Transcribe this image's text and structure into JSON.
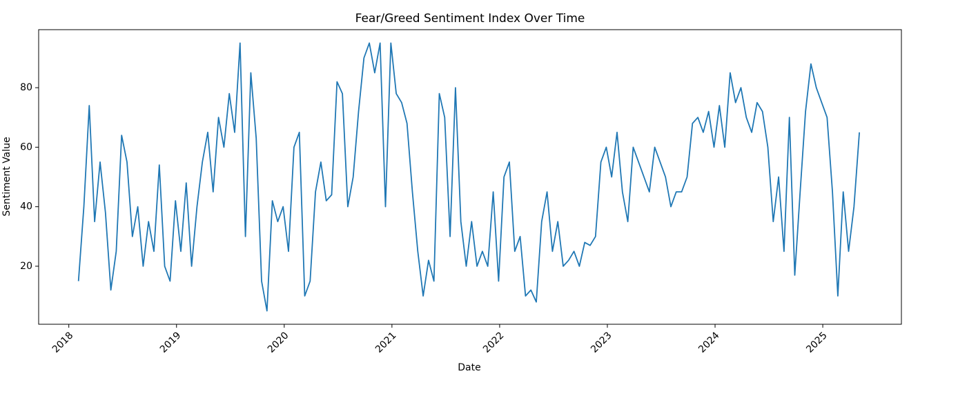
{
  "chart_data": {
    "type": "line",
    "title": "Fear/Greed Sentiment Index Over Time",
    "x_label": "Date",
    "y_label": "Sentiment Value",
    "color": "#1f77b4",
    "xlim": [
      2017.72,
      2025.73
    ],
    "xticks": [
      2018,
      2019,
      2020,
      2021,
      2022,
      2023,
      2024,
      2025
    ],
    "ylim": [
      0.5,
      99.5
    ],
    "yticks": [
      20,
      40,
      60,
      80
    ],
    "grid": false,
    "x": [
      2018.09,
      2018.14,
      2018.19,
      2018.24,
      2018.29,
      2018.34,
      2018.39,
      2018.44,
      2018.49,
      2018.54,
      2018.59,
      2018.64,
      2018.69,
      2018.74,
      2018.79,
      2018.84,
      2018.89,
      2018.94,
      2018.99,
      2019.04,
      2019.09,
      2019.14,
      2019.19,
      2019.24,
      2019.29,
      2019.34,
      2019.39,
      2019.44,
      2019.49,
      2019.54,
      2019.59,
      2019.64,
      2019.69,
      2019.74,
      2019.79,
      2019.84,
      2019.89,
      2019.94,
      2019.99,
      2020.04,
      2020.09,
      2020.14,
      2020.19,
      2020.24,
      2020.29,
      2020.34,
      2020.39,
      2020.44,
      2020.49,
      2020.54,
      2020.59,
      2020.64,
      2020.69,
      2020.74,
      2020.79,
      2020.84,
      2020.89,
      2020.94,
      2020.99,
      2021.04,
      2021.09,
      2021.14,
      2021.19,
      2021.24,
      2021.29,
      2021.34,
      2021.39,
      2021.44,
      2021.49,
      2021.54,
      2021.59,
      2021.64,
      2021.69,
      2021.74,
      2021.79,
      2021.84,
      2021.89,
      2021.94,
      2021.99,
      2022.04,
      2022.09,
      2022.14,
      2022.19,
      2022.24,
      2022.29,
      2022.34,
      2022.39,
      2022.44,
      2022.49,
      2022.54,
      2022.59,
      2022.64,
      2022.69,
      2022.74,
      2022.79,
      2022.84,
      2022.89,
      2022.94,
      2022.99,
      2023.04,
      2023.09,
      2023.14,
      2023.19,
      2023.24,
      2023.29,
      2023.34,
      2023.39,
      2023.44,
      2023.49,
      2023.54,
      2023.59,
      2023.64,
      2023.69,
      2023.74,
      2023.79,
      2023.84,
      2023.89,
      2023.94,
      2023.99,
      2024.04,
      2024.09,
      2024.14,
      2024.19,
      2024.24,
      2024.29,
      2024.34,
      2024.39,
      2024.44,
      2024.49,
      2024.54,
      2024.59,
      2024.64,
      2024.69,
      2024.74,
      2024.79,
      2024.84,
      2024.89,
      2024.94,
      2024.99,
      2025.04,
      2025.09,
      2025.14,
      2025.19,
      2025.24,
      2025.29,
      2025.34
    ],
    "values": [
      15,
      40,
      74,
      35,
      55,
      38,
      12,
      25,
      64,
      55,
      30,
      40,
      20,
      35,
      25,
      54,
      20,
      15,
      42,
      25,
      48,
      20,
      40,
      55,
      65,
      45,
      70,
      60,
      78,
      65,
      95,
      30,
      85,
      63,
      15,
      5,
      42,
      35,
      40,
      25,
      60,
      65,
      10,
      15,
      45,
      55,
      42,
      44,
      82,
      78,
      40,
      50,
      72,
      90,
      95,
      85,
      95,
      40,
      95,
      78,
      75,
      68,
      45,
      25,
      10,
      22,
      15,
      78,
      70,
      30,
      80,
      35,
      20,
      35,
      20,
      25,
      20,
      45,
      15,
      50,
      55,
      25,
      30,
      10,
      12,
      8,
      35,
      45,
      25,
      35,
      20,
      22,
      25,
      20,
      28,
      27,
      30,
      55,
      60,
      50,
      65,
      45,
      35,
      60,
      55,
      50,
      45,
      60,
      55,
      50,
      40,
      45,
      45,
      50,
      68,
      70,
      65,
      72,
      60,
      74,
      60,
      85,
      75,
      80,
      70,
      65,
      75,
      72,
      60,
      35,
      50,
      25,
      70,
      17,
      45,
      72,
      88,
      80,
      75,
      70,
      45,
      10,
      45,
      25,
      40,
      65
    ]
  }
}
